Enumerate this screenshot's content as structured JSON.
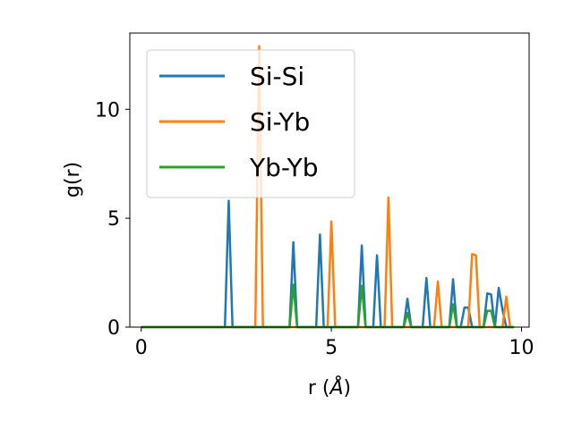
{
  "chart_data": {
    "type": "line",
    "xlabel": "r (",
    "xlabel_unit": "Å",
    "xlabel_close": ")",
    "ylabel": "g(r)",
    "xlim": [
      -0.3,
      10.2
    ],
    "ylim": [
      0,
      13.5
    ],
    "xticks": [
      0,
      5,
      10
    ],
    "yticks": [
      0,
      5,
      10
    ],
    "legend_position": "upper-left",
    "grid": false,
    "series": [
      {
        "name": "Si-Si",
        "color": "#1f77b4",
        "points": [
          [
            0,
            0
          ],
          [
            2.2,
            0
          ],
          [
            2.3,
            5.8
          ],
          [
            2.4,
            0
          ],
          [
            3.9,
            0
          ],
          [
            4.0,
            3.9
          ],
          [
            4.1,
            0
          ],
          [
            4.6,
            0
          ],
          [
            4.7,
            4.25
          ],
          [
            4.8,
            0
          ],
          [
            5.7,
            0
          ],
          [
            5.8,
            3.75
          ],
          [
            5.9,
            0
          ],
          [
            6.1,
            0
          ],
          [
            6.2,
            3.3
          ],
          [
            6.3,
            0
          ],
          [
            6.9,
            0
          ],
          [
            7.0,
            1.3
          ],
          [
            7.1,
            0
          ],
          [
            7.4,
            0
          ],
          [
            7.5,
            2.25
          ],
          [
            7.6,
            0
          ],
          [
            8.1,
            0
          ],
          [
            8.2,
            2.2
          ],
          [
            8.3,
            0
          ],
          [
            8.4,
            0
          ],
          [
            8.5,
            0.9
          ],
          [
            8.6,
            0.9
          ],
          [
            8.7,
            0
          ],
          [
            9.0,
            0
          ],
          [
            9.1,
            1.55
          ],
          [
            9.2,
            1.5
          ],
          [
            9.3,
            0
          ],
          [
            9.4,
            1.8
          ],
          [
            9.5,
            0.8
          ],
          [
            9.6,
            0
          ],
          [
            9.8,
            0
          ]
        ]
      },
      {
        "name": "Si-Yb",
        "color": "#ff7f0e",
        "points": [
          [
            0,
            0
          ],
          [
            3.0,
            0
          ],
          [
            3.1,
            12.9
          ],
          [
            3.2,
            0
          ],
          [
            4.9,
            0
          ],
          [
            5.0,
            4.85
          ],
          [
            5.1,
            0
          ],
          [
            6.4,
            0
          ],
          [
            6.5,
            5.95
          ],
          [
            6.6,
            0
          ],
          [
            7.7,
            0
          ],
          [
            7.8,
            2.1
          ],
          [
            7.9,
            0
          ],
          [
            8.6,
            0
          ],
          [
            8.7,
            3.35
          ],
          [
            8.8,
            3.3
          ],
          [
            8.9,
            0
          ],
          [
            9.5,
            0
          ],
          [
            9.6,
            1.4
          ],
          [
            9.7,
            0
          ],
          [
            9.8,
            0
          ]
        ]
      },
      {
        "name": "Yb-Yb",
        "color": "#2ca02c",
        "points": [
          [
            0,
            0
          ],
          [
            3.9,
            0
          ],
          [
            4.0,
            1.95
          ],
          [
            4.1,
            0
          ],
          [
            5.7,
            0
          ],
          [
            5.8,
            1.9
          ],
          [
            5.9,
            0
          ],
          [
            6.9,
            0
          ],
          [
            7.0,
            0.65
          ],
          [
            7.1,
            0
          ],
          [
            8.1,
            0
          ],
          [
            8.2,
            1.05
          ],
          [
            8.3,
            0
          ],
          [
            9.0,
            0
          ],
          [
            9.1,
            0.75
          ],
          [
            9.2,
            0.75
          ],
          [
            9.3,
            0
          ],
          [
            9.8,
            0
          ]
        ]
      }
    ]
  }
}
